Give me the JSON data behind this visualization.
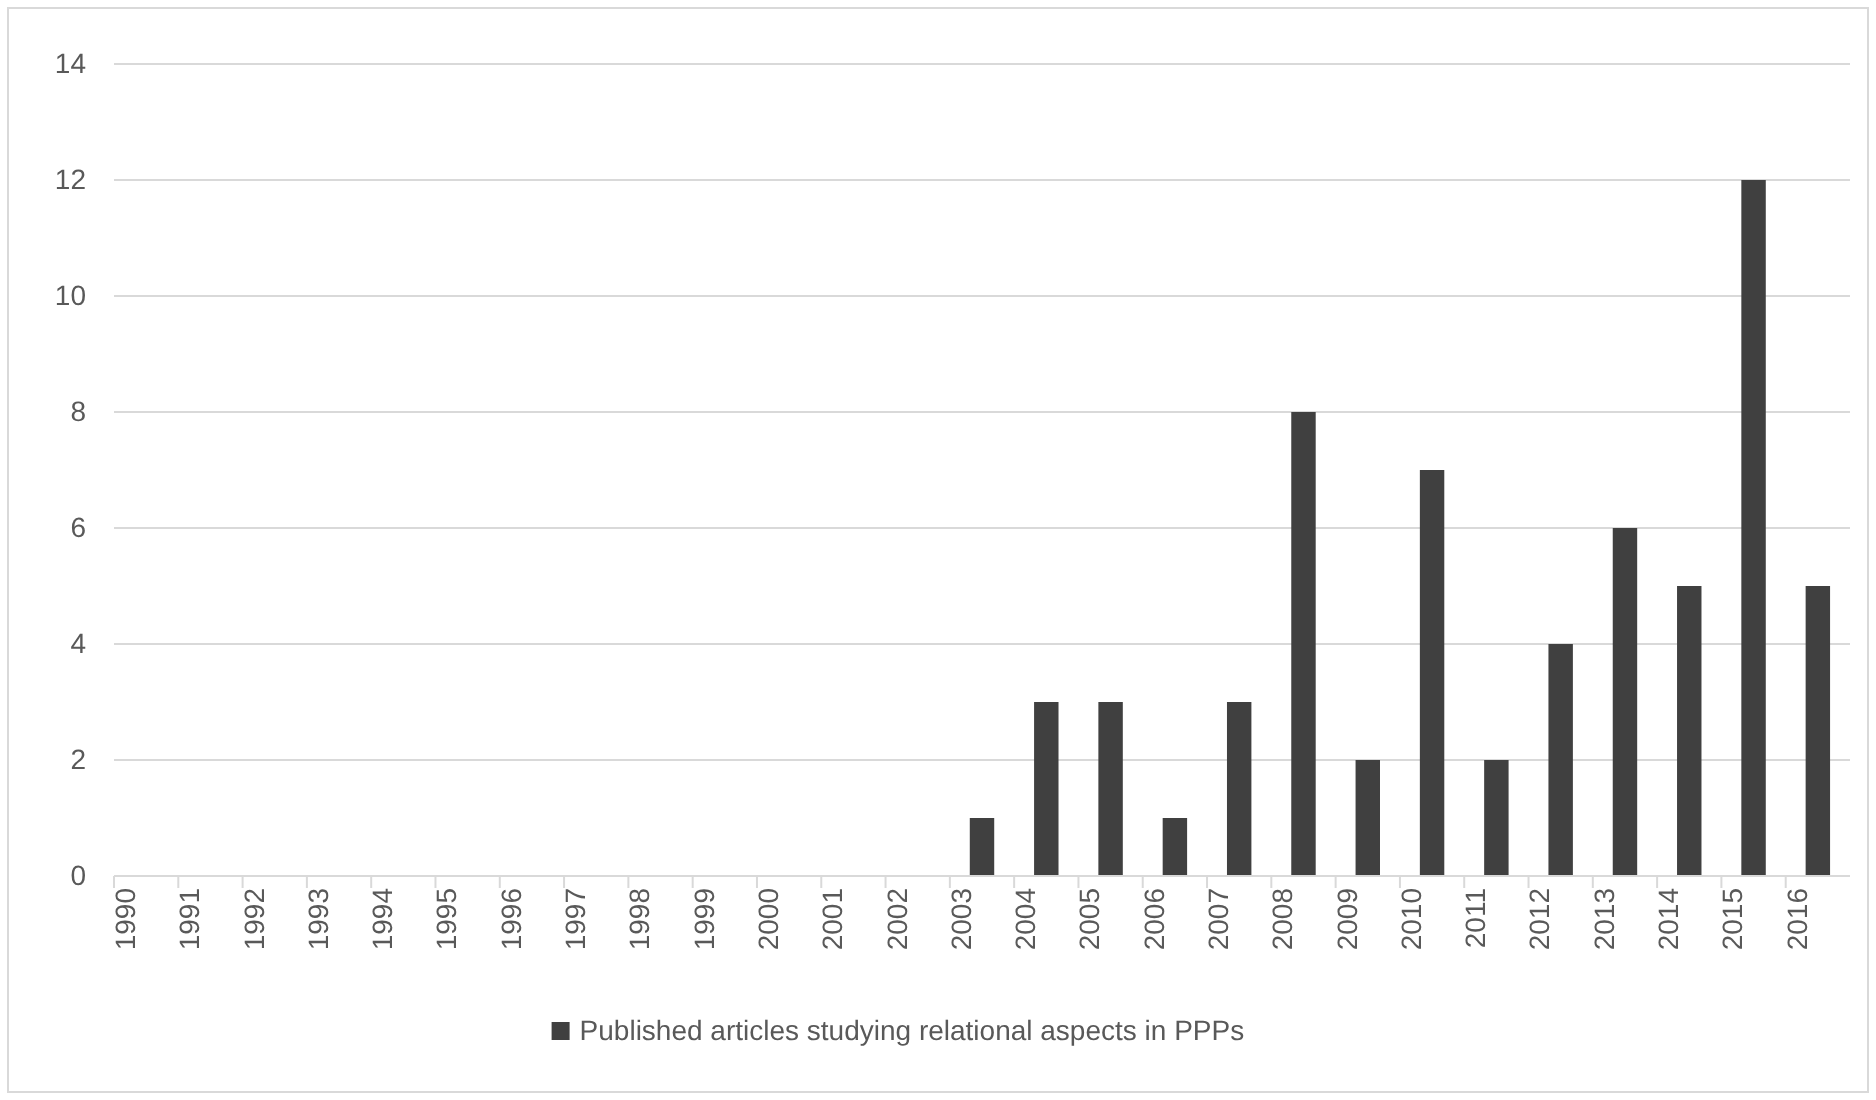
{
  "chart_data": {
    "type": "bar",
    "categories": [
      "1990",
      "1991",
      "1992",
      "1993",
      "1994",
      "1995",
      "1996",
      "1997",
      "1998",
      "1999",
      "2000",
      "2001",
      "2002",
      "2003",
      "2004",
      "2005",
      "2006",
      "2007",
      "2008",
      "2009",
      "2010",
      "2011",
      "2012",
      "2013",
      "2014",
      "2015",
      "2016"
    ],
    "series": [
      {
        "name": "Published articles studying relational aspects in PPPs",
        "color": "#404040",
        "values": [
          0,
          0,
          0,
          0,
          0,
          0,
          0,
          0,
          0,
          0,
          0,
          0,
          0,
          1,
          3,
          3,
          1,
          3,
          8,
          2,
          7,
          2,
          4,
          6,
          5,
          12,
          5
        ]
      }
    ],
    "ylim": [
      0,
      14
    ],
    "yticks": [
      0,
      2,
      4,
      6,
      8,
      10,
      12,
      14
    ],
    "grid": "y",
    "legend": "bottom"
  }
}
